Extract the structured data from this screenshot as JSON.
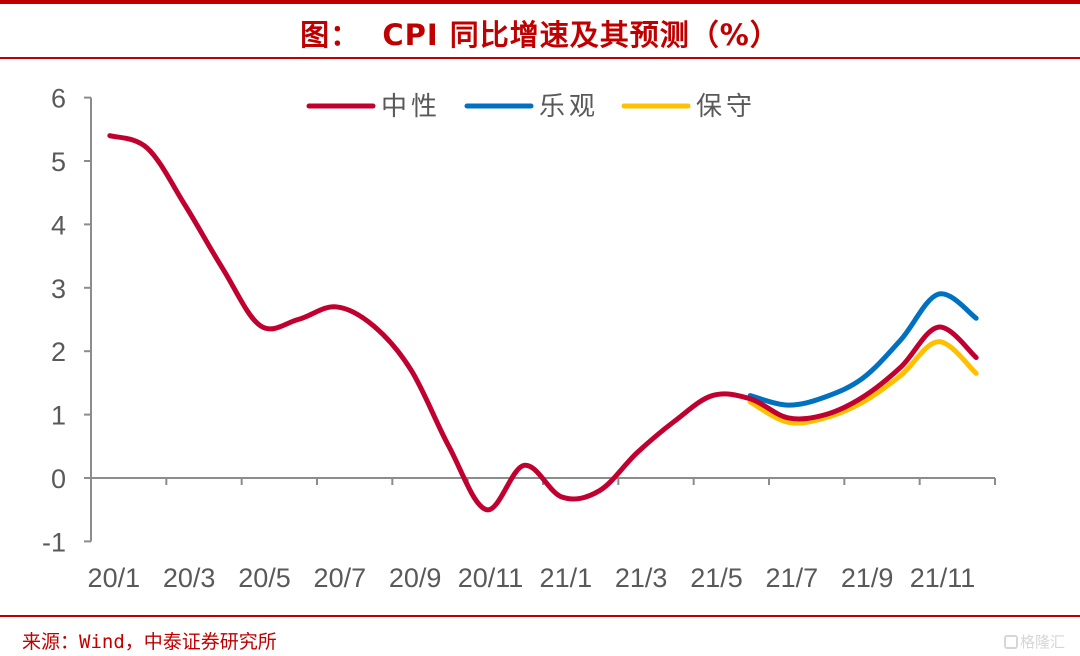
{
  "title": "图：  CPI 同比增速及其预测（%）",
  "source": "来源：Wind，中泰证券研究所",
  "watermark": "格隆汇",
  "colors": {
    "neutral": "#c0002f",
    "optimistic": "#0070c0",
    "conservative": "#ffc000",
    "axis": "#8c8c8c",
    "tick_text": "#595959",
    "accent": "#c00000"
  },
  "chart_data": {
    "type": "line",
    "title": "CPI 同比增速及其预测（%）",
    "xlabel": "",
    "ylabel": "",
    "ylim": [
      -1,
      6
    ],
    "yticks": [
      "6",
      "5",
      "4",
      "3",
      "2",
      "1",
      "0",
      "-1"
    ],
    "ytick_values": [
      6,
      5,
      4,
      3,
      2,
      1,
      0,
      -1
    ],
    "x": [
      "20/1",
      "20/2",
      "20/3",
      "20/4",
      "20/5",
      "20/6",
      "20/7",
      "20/8",
      "20/9",
      "20/10",
      "20/11",
      "20/12",
      "21/1",
      "21/2",
      "21/3",
      "21/4",
      "21/5",
      "21/6",
      "21/7",
      "21/8",
      "21/9",
      "21/10",
      "21/11",
      "21/12"
    ],
    "xtick_labels": [
      "20/1",
      "20/3",
      "20/5",
      "20/7",
      "20/9",
      "20/11",
      "21/1",
      "21/3",
      "21/5",
      "21/7",
      "21/9",
      "21/11"
    ],
    "legend_position": "top-center",
    "grid": false,
    "series": [
      {
        "name": "中性",
        "color_key": "neutral",
        "values": [
          5.4,
          5.2,
          4.3,
          3.3,
          2.4,
          2.5,
          2.7,
          2.4,
          1.7,
          0.5,
          -0.5,
          0.2,
          -0.3,
          -0.2,
          0.4,
          0.9,
          1.3,
          1.25,
          0.95,
          1.0,
          1.28,
          1.75,
          2.38,
          1.9
        ]
      },
      {
        "name": "乐观",
        "color_key": "optimistic",
        "values": [
          null,
          null,
          null,
          null,
          null,
          null,
          null,
          null,
          null,
          null,
          null,
          null,
          null,
          null,
          null,
          null,
          null,
          1.3,
          1.15,
          1.28,
          1.58,
          2.18,
          2.9,
          2.52
        ]
      },
      {
        "name": "保守",
        "color_key": "conservative",
        "values": [
          null,
          null,
          null,
          null,
          null,
          null,
          null,
          null,
          null,
          null,
          null,
          null,
          null,
          null,
          null,
          null,
          null,
          1.2,
          0.88,
          0.95,
          1.2,
          1.62,
          2.15,
          1.65
        ]
      }
    ]
  }
}
